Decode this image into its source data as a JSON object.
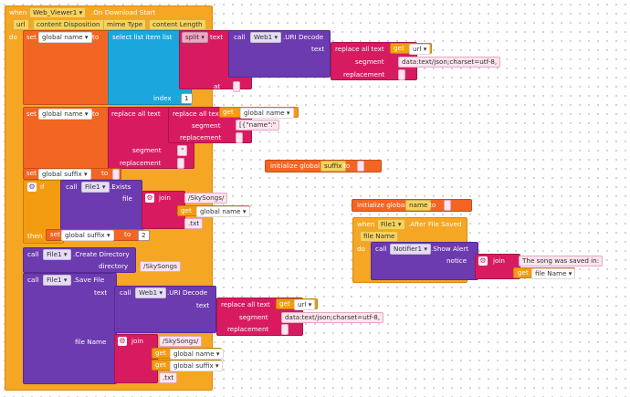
{
  "event": {
    "when": "when",
    "component": "Web_Viewer1",
    "event_name": ".On Download Start",
    "params": [
      "url",
      "content Disposition",
      "mime Type",
      "content Length"
    ],
    "do": "do"
  },
  "kw": {
    "set": "set",
    "to": "to",
    "get": "get",
    "call": "call",
    "join": "join",
    "if": "if",
    "then": "then",
    "index": "index",
    "at": "at",
    "text": "text",
    "segment": "segment",
    "replacement": "replacement",
    "file": "file",
    "directory": "directory",
    "file_name": "file Name",
    "notice": "notice",
    "list": "list",
    "initialize_global": "initialize global"
  },
  "blocks": {
    "select_list_item": "select list item",
    "split": "split",
    "replace_all": "replace all text",
    "uri_decode": ".URI Decode",
    "exists": ".Exists",
    "create_dir": ".Create Directory",
    "save_file": ".Save File",
    "after_file_saved": ".After File Saved",
    "show_alert": ".Show Alert"
  },
  "components": {
    "web": "Web1",
    "file": "File1",
    "notifier": "Notifier1"
  },
  "vars": {
    "global_name": "global name",
    "global_suffix": "global suffix",
    "suffix": "suffix",
    "name": "name",
    "url": "url",
    "file_name": "file Name"
  },
  "strings": {
    "mime_segment": "data:text/json;charset=utf-8,",
    "empty": " ",
    "name_key": "[{\"name\":\"",
    "quote": "\"",
    "sky_folder": "/SkySongs/",
    "sky_dir": "/SkySongs",
    "txt": ".txt",
    "saved_msg": "The song was saved in: "
  },
  "numbers": {
    "index": "1",
    "two": "2"
  }
}
